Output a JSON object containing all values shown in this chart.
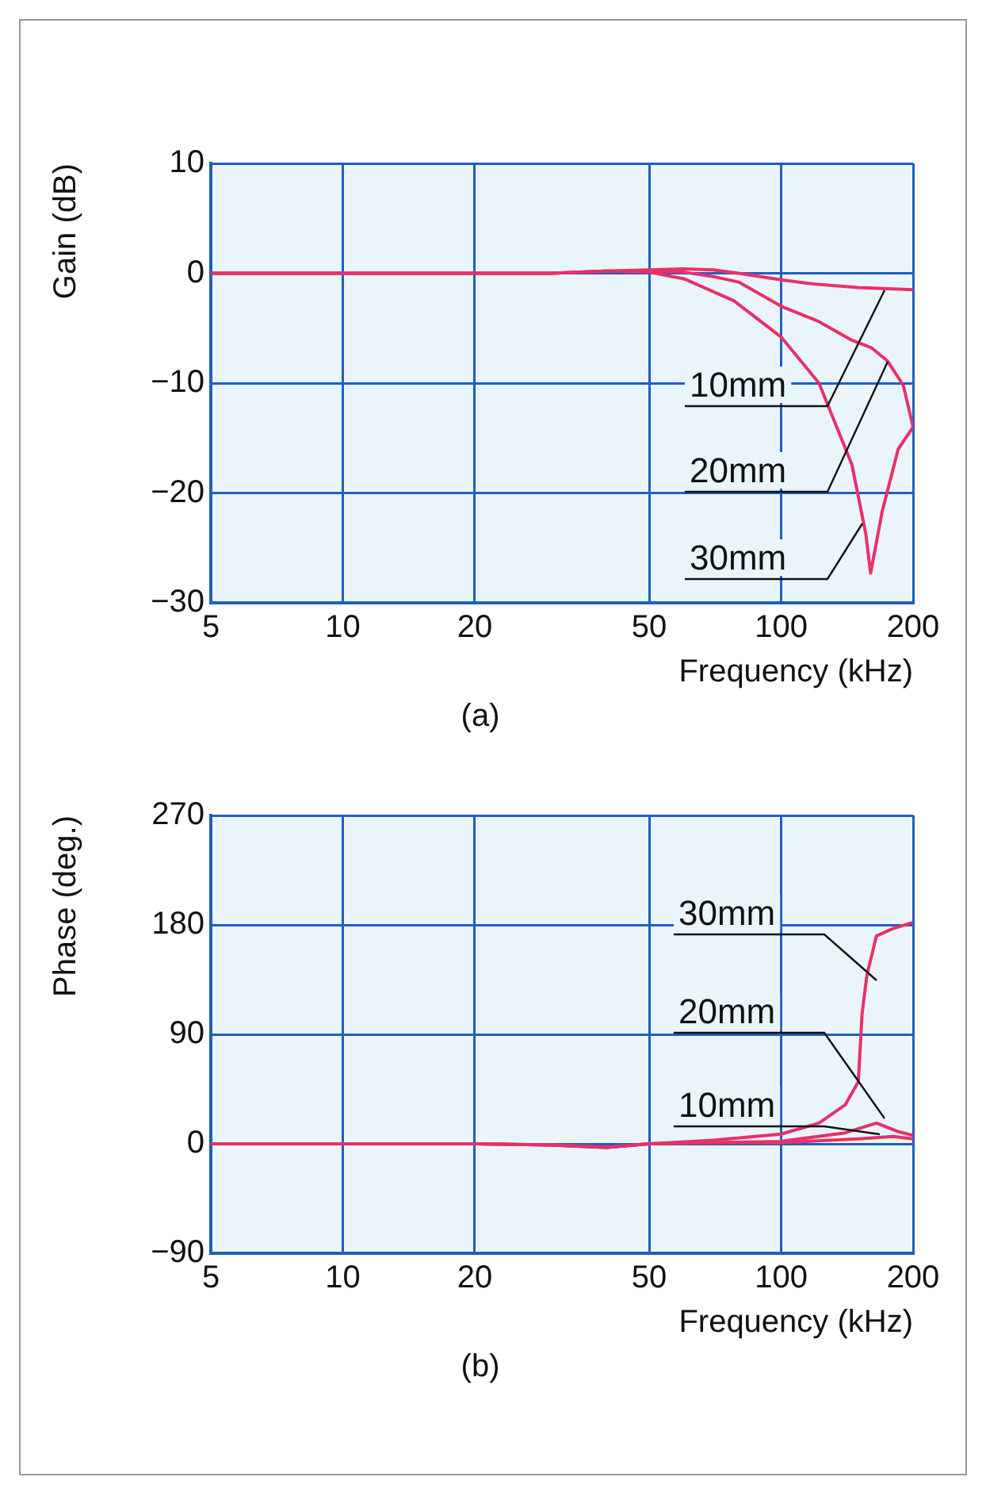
{
  "chart_data": [
    {
      "type": "line",
      "title": "(a)",
      "xlabel": "Frequency (kHz)",
      "ylabel": "Gain (dB)",
      "log": "x",
      "grid": true,
      "legend": false,
      "marker": "none",
      "line_style": "solid",
      "xlim": [
        5,
        200
      ],
      "xticks": [
        5,
        10,
        20,
        50,
        100,
        200
      ],
      "ylim": [
        -30,
        10
      ],
      "yticks": [
        {
          "value": -30,
          "label": "−30"
        },
        {
          "value": -20,
          "label": "−20"
        },
        {
          "value": -10,
          "label": "−10"
        },
        0,
        10
      ],
      "series": [
        {
          "name": "10mm",
          "color": "#e8306a",
          "x": [
            5,
            10,
            20,
            30,
            40,
            50,
            60,
            70,
            80,
            100,
            120,
            150,
            200
          ],
          "values": [
            0,
            0,
            0,
            0,
            0.2,
            0.3,
            0.4,
            0.3,
            0,
            -0.6,
            -1,
            -1.3,
            -1.5
          ]
        },
        {
          "name": "20mm",
          "color": "#e8306a",
          "x": [
            5,
            10,
            20,
            30,
            40,
            50,
            60,
            70,
            80,
            100,
            122,
            145,
            161,
            175,
            190,
            200
          ],
          "values": [
            0,
            0,
            0,
            0,
            0.2,
            0.2,
            0.1,
            -0.3,
            -0.8,
            -3,
            -4.4,
            -6.1,
            -6.8,
            -8,
            -10.2,
            -14
          ]
        },
        {
          "name": "30mm",
          "color": "#e8306a",
          "x": [
            5,
            10,
            20,
            30,
            40,
            50,
            60,
            78,
            100,
            122,
            145,
            156,
            160,
            170,
            185,
            200
          ],
          "values": [
            0,
            0,
            0,
            0,
            0.2,
            0.1,
            -0.5,
            -2.5,
            -5.8,
            -10,
            -17.4,
            -23.7,
            -27.3,
            -21.7,
            -16,
            -14
          ]
        }
      ]
    },
    {
      "type": "line",
      "title": "(b)",
      "xlabel": "Frequency (kHz)",
      "ylabel": "Phase (deg.)",
      "log": "x",
      "grid": true,
      "legend": false,
      "marker": "none",
      "line_style": "solid",
      "xlim": [
        5,
        200
      ],
      "xticks": [
        5,
        10,
        20,
        50,
        100,
        200
      ],
      "ylim": [
        -90,
        270
      ],
      "yticks": [
        {
          "value": -90,
          "label": "−90"
        },
        0,
        90,
        180,
        270
      ],
      "series": [
        {
          "name": "10mm",
          "color": "#e8306a",
          "x": [
            5,
            10,
            20,
            30,
            40,
            50,
            70,
            100,
            150,
            180,
            200
          ],
          "values": [
            0,
            0,
            0,
            -1,
            -3,
            0,
            1,
            1,
            4,
            6,
            4
          ]
        },
        {
          "name": "20mm",
          "color": "#e8306a",
          "x": [
            5,
            10,
            20,
            30,
            40,
            50,
            70,
            100,
            140,
            165,
            185,
            200
          ],
          "values": [
            0,
            0,
            0,
            -1,
            -3,
            0,
            1,
            2,
            9,
            17,
            10,
            7
          ]
        },
        {
          "name": "30mm",
          "color": "#e8306a",
          "x": [
            5,
            10,
            20,
            30,
            40,
            50,
            70,
            100,
            122,
            140,
            150,
            153,
            157,
            165,
            180,
            200
          ],
          "values": [
            0,
            0,
            0,
            -1,
            -3,
            0,
            3,
            8,
            17,
            32,
            51,
            107,
            139,
            171,
            177,
            182
          ]
        }
      ]
    }
  ]
}
